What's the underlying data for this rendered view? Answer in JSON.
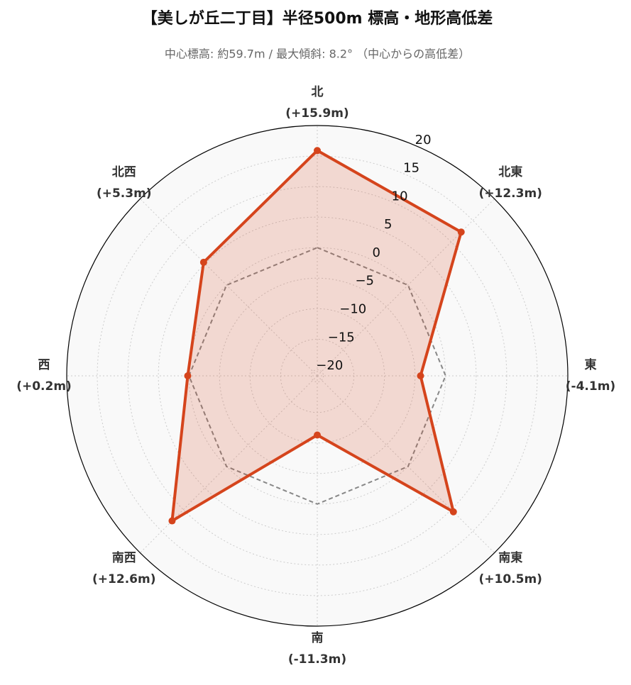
{
  "chart_data": {
    "type": "radar",
    "title": "【美しが丘二丁目】半径500m 標高・地形高低差",
    "subtitle": "中心標高: 約59.7m / 最大傾斜: 8.2° （中心からの高低差）",
    "categories": [
      "北",
      "北東",
      "東",
      "南東",
      "南",
      "南西",
      "西",
      "北西"
    ],
    "values": [
      15.9,
      12.3,
      -4.1,
      10.5,
      -11.3,
      12.6,
      0.2,
      5.3
    ],
    "value_labels": [
      "(+15.9m)",
      "(+12.3m)",
      "(-4.1m)",
      "(+10.5m)",
      "(-11.3m)",
      "(+12.6m)",
      "(+0.2m)",
      "(+5.3m)"
    ],
    "color": "#d5441c",
    "baseline": 0,
    "baseline_color": "#888888",
    "ylim": [
      -21,
      20
    ],
    "yticks": [
      {
        "value": -20,
        "label": "−20"
      },
      {
        "value": -15,
        "label": "−15"
      },
      {
        "value": -10,
        "label": "−10"
      },
      {
        "value": -5,
        "label": "−5"
      },
      0,
      5,
      10,
      15,
      20
    ],
    "grid": true
  }
}
